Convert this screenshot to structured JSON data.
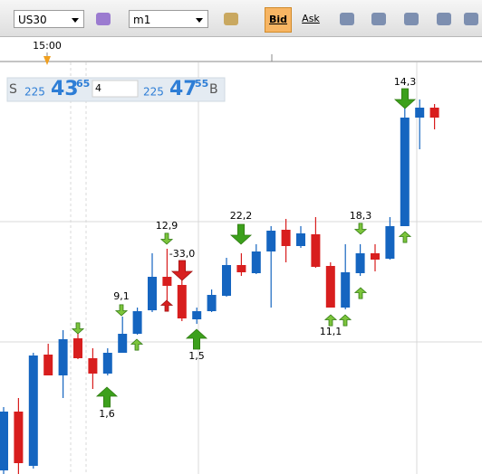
{
  "toolbar": {
    "symbol": "US30",
    "timeframe": "m1",
    "bid": "Bid",
    "ask": "Ask"
  },
  "time_label": "15:00",
  "quote": {
    "sell_label": "S",
    "sell_big": "225",
    "sell_main": "43",
    "sell_small": "65",
    "amount": "4",
    "buy_big": "225",
    "buy_main": "47",
    "buy_small": "55",
    "buy_label": "B"
  },
  "chart_data": {
    "type": "candlestick",
    "ylim": [
      22346,
      22578
    ],
    "up_color": "#1565c0",
    "down_color": "#d81e1e",
    "open": [
      22348,
      22380.5,
      22350.5,
      22412,
      22400.5,
      22421,
      22410,
      22401.5,
      22413,
      22423.5,
      22436.5,
      22455,
      22450.5,
      22431.5,
      22436,
      22444.5,
      22461.5,
      22457,
      22469,
      22481,
      22472,
      22478.5,
      22461,
      22438,
      22457,
      22468,
      22465,
      22483,
      22543,
      22548.5
    ],
    "high": [
      22383,
      22388,
      22413,
      22418,
      22425.5,
      22424,
      22415.5,
      22415.5,
      22433,
      22438,
      22468,
      22470.5,
      22458,
      22438,
      22448,
      22465.5,
      22468,
      22473,
      22483,
      22487,
      22483,
      22488,
      22463,
      22473,
      22473,
      22473,
      22488,
      22550.5,
      22553,
      22550.5
    ],
    "low": [
      22346,
      22346,
      22349,
      22400.5,
      22388,
      22409.5,
      22393,
      22400.5,
      22413,
      22423,
      22435.5,
      22438,
      22430.5,
      22429,
      22435.5,
      22444,
      22455.5,
      22456.5,
      22438,
      22463,
      22471,
      22460,
      22438,
      22437,
      22455.5,
      22458,
      22464.5,
      22483,
      22525.5,
      22536.5
    ],
    "close": [
      22380.5,
      22352,
      22411.5,
      22400.5,
      22420.5,
      22410,
      22401.5,
      22413,
      22423.5,
      22436,
      22455,
      22450,
      22432,
      22436,
      22445,
      22461.5,
      22457.5,
      22469,
      22480.5,
      22472,
      22479,
      22460.5,
      22438,
      22457.5,
      22468,
      22464.5,
      22483,
      22543,
      22548.5,
      22543
    ],
    "annotations": [
      "1,6",
      "9,1",
      "12,9",
      "-33,0",
      "1,5",
      "22,2",
      "11,1",
      "18,3",
      "14,3"
    ]
  }
}
